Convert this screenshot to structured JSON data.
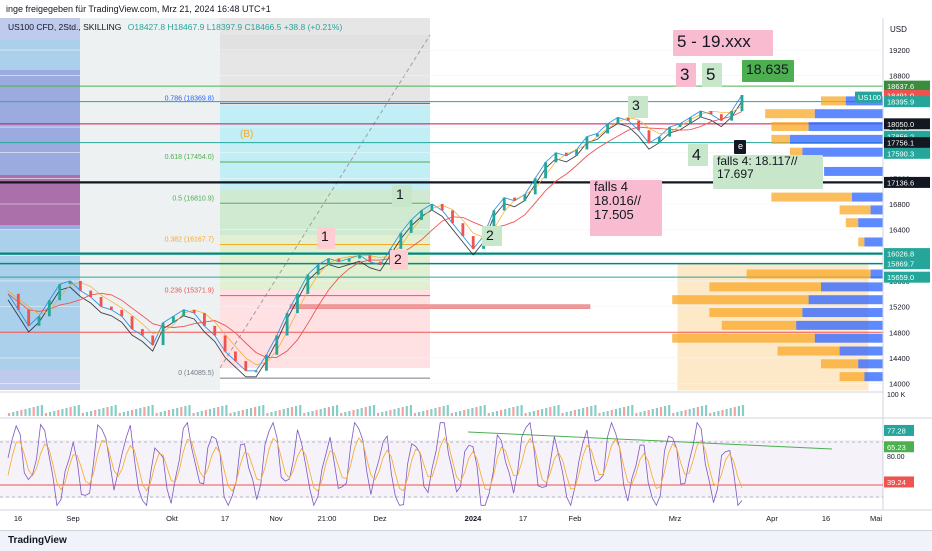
{
  "header": {
    "published": "inge freigegeben für TradingView.com, Mrz 21, 2024 16:48 UTC+1"
  },
  "legend": {
    "symbol": "US100 CFD, 2Std., SKILLING",
    "ohlc": "O18427.8 H18467.9 L18397.9 C18466.5 +38.8 (+0.21%)",
    "currency": "USD"
  },
  "footer": {
    "logo": "TradingView"
  },
  "colors": {
    "up": "#26a69a",
    "down": "#ef5350",
    "fib_blue": "#2962ff",
    "price_tag": "#131722",
    "rsi": "#7e57c2",
    "volume_profile_up": "#f9a825",
    "volume_profile_down": "#2962ff"
  },
  "chart_data": [
    {
      "type": "line",
      "panel": "price",
      "yticks": [
        14000,
        14400,
        14800,
        15200,
        15600,
        16000,
        16400,
        16800,
        17200,
        17600,
        18000,
        18400,
        18800,
        19200
      ],
      "ylim": [
        13900,
        19700
      ],
      "xticks": [
        "16",
        "Sep",
        "Okt",
        "17",
        "Nov",
        "21:00",
        "Dez",
        "2024",
        "17",
        "Feb",
        "Mrz",
        "Apr",
        "16",
        "Mai"
      ],
      "series": [
        {
          "values": [
            15400,
            15150,
            14900,
            15050,
            15300,
            15550,
            15600,
            15450,
            15350,
            15200,
            15150,
            15050,
            14850,
            14750,
            14600,
            14950,
            15050,
            15150,
            15100,
            14900,
            14750,
            14500,
            14350,
            14200,
            14200,
            14450,
            14750,
            15100,
            15400,
            15700,
            15850,
            15950,
            15900,
            15950,
            16000,
            15900,
            15850,
            16100,
            16350,
            16550,
            16700,
            16800,
            16700,
            16500,
            16300,
            16100,
            16300,
            16700,
            16900,
            16850,
            16950,
            17200,
            17450,
            17600,
            17550,
            17650,
            17850,
            17900,
            18050,
            18150,
            18100,
            17950,
            17750,
            17850,
            18000,
            18050,
            18150,
            18250,
            18200,
            18100,
            18250,
            18500
          ]
        }
      ],
      "fib_levels": [
        {
          "label": "0.786 (18369.8)",
          "value": 18369.8
        },
        {
          "label": "0.618 (17454.0)",
          "value": 17454.0
        },
        {
          "label": "0.5 (16810.9)",
          "value": 16810.9
        },
        {
          "label": "0.382 (16167.7)",
          "value": 16167.7
        },
        {
          "label": "0.236 (15371.9)",
          "value": 15371.9
        },
        {
          "label": "0 (14085.5)",
          "value": 14085.5
        }
      ],
      "price_tags": [
        {
          "label": "18637.6",
          "value": 18637.6,
          "color": "#388e3c"
        },
        {
          "label": "18491.0",
          "value": 18491.0,
          "color": "#ef5350"
        },
        {
          "label": "18395.9",
          "value": 18395.9,
          "color": "#26a69a"
        },
        {
          "label": "US100",
          "value": 18466.5,
          "color": "#26a69a"
        },
        {
          "label": "18050.0",
          "value": 18050.0,
          "color": "#131722"
        },
        {
          "label": "17856.2",
          "value": 17856.2,
          "color": "#26a69a"
        },
        {
          "label": "17756.1",
          "value": 17756.1,
          "color": "#131722"
        },
        {
          "label": "17590.3",
          "value": 17590.3,
          "color": "#26a69a"
        },
        {
          "label": "17136.6",
          "value": 17136.6,
          "color": "#131722"
        },
        {
          "label": "16026.8",
          "value": 16026.8,
          "color": "#26a69a"
        },
        {
          "label": "15869.7",
          "value": 15869.7,
          "color": "#26a69a"
        },
        {
          "label": "15659.0",
          "value": 15659.0,
          "color": "#26a69a"
        }
      ],
      "annotations": [
        {
          "text": "5 - 19.xxx"
        },
        {
          "text": "3"
        },
        {
          "text": "5"
        },
        {
          "text": "18.635"
        },
        {
          "text": "3"
        },
        {
          "text": "4"
        },
        {
          "text": "falls 4: 18.117//\n17.697"
        },
        {
          "text": "falls 4\n18.016//\n17.505"
        },
        {
          "text": "1"
        },
        {
          "text": "2"
        },
        {
          "text": "1"
        },
        {
          "text": "2"
        },
        {
          "text": "(B)"
        },
        {
          "text": "e"
        }
      ]
    },
    {
      "type": "line",
      "panel": "rsi",
      "yticks": [
        "77.28",
        "65.23",
        "39.24"
      ],
      "tick_values": [
        77.28,
        65.23,
        39.24
      ],
      "ylim": [
        20,
        85
      ],
      "extra_ticks": [
        "100 K",
        "80.00"
      ]
    }
  ]
}
